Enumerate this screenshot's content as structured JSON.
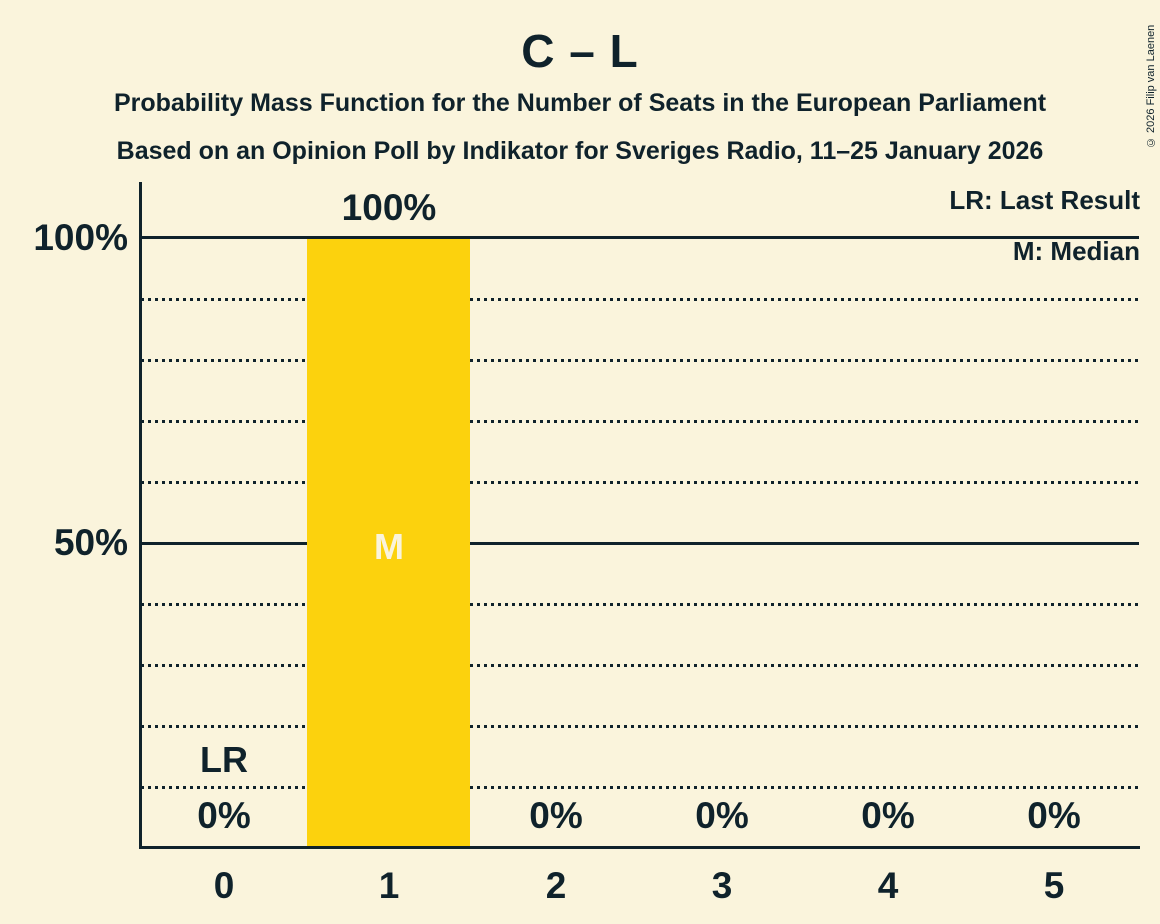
{
  "header": {
    "title": "C – L",
    "subtitle1": "Probability Mass Function for the Number of Seats in the European Parliament",
    "subtitle2": "Based on an Opinion Poll by Indikator for Sveriges Radio, 11–25 January 2026"
  },
  "copyright": "© 2026 Filip van Laenen",
  "chart_data": {
    "type": "bar",
    "title": "C – L",
    "xlabel": "",
    "ylabel": "",
    "categories": [
      "0",
      "1",
      "2",
      "3",
      "4",
      "5"
    ],
    "values": [
      0,
      100,
      0,
      0,
      0,
      0
    ],
    "value_labels": [
      "0%",
      "100%",
      "0%",
      "0%",
      "0%",
      "0%"
    ],
    "ylim": [
      0,
      100
    ],
    "ytick_labels": [
      "100%",
      "50%"
    ],
    "ytick_values": [
      100,
      50
    ],
    "solid_gridlines_percent": [
      100,
      50
    ],
    "dotted_gridlines_percent": [
      90,
      80,
      70,
      60,
      40,
      30,
      20,
      10
    ],
    "grid": "on",
    "legend_position": "top-right",
    "legend_entries": [
      "LR: Last Result",
      "M: Median"
    ],
    "annotations": [
      {
        "text": "LR",
        "meaning": "Last Result",
        "category": "0"
      },
      {
        "text": "M",
        "meaning": "Median",
        "category": "1"
      }
    ],
    "colors": {
      "background": "#FAF4DC",
      "bar": "#FCD20D",
      "text": "#0F222B"
    }
  }
}
